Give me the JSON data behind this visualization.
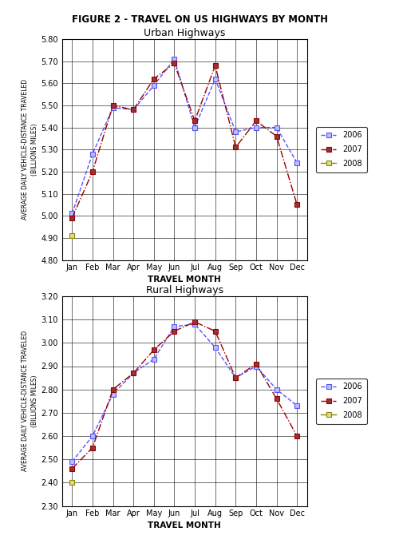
{
  "title": "FIGURE 2 - TRAVEL ON US HIGHWAYS BY MONTH",
  "months": [
    "Jan",
    "Feb",
    "Mar",
    "Apr",
    "May",
    "Jun",
    "Jul",
    "Aug",
    "Sep",
    "Oct",
    "Nov",
    "Dec"
  ],
  "urban": {
    "title": "Urban Highways",
    "ylabel": "AVERAGE DAILY VEHICLE-DISTANCE TRAVELED\n(BILLIONS MILES)",
    "xlabel": "TRAVEL MONTH",
    "ylim": [
      4.8,
      5.8
    ],
    "yticks": [
      4.8,
      4.9,
      5.0,
      5.1,
      5.2,
      5.3,
      5.4,
      5.5,
      5.6,
      5.7,
      5.8
    ],
    "data_2006": [
      5.01,
      5.28,
      5.49,
      5.48,
      5.59,
      5.71,
      5.4,
      5.62,
      5.38,
      5.4,
      5.4,
      5.24
    ],
    "data_2007": [
      4.99,
      5.2,
      5.5,
      5.48,
      5.62,
      5.69,
      5.43,
      5.68,
      5.31,
      5.43,
      5.36,
      5.05
    ],
    "data_2008": [
      4.91,
      null,
      null,
      null,
      null,
      null,
      null,
      null,
      null,
      null,
      null,
      null
    ]
  },
  "rural": {
    "title": "Rural Highways",
    "ylabel": "AVERAGE DAILY VEHICLE-DISTANCE TRAVELED\n(BILLIONS MILES)",
    "xlabel": "TRAVEL MONTH",
    "ylim": [
      2.3,
      3.2
    ],
    "yticks": [
      2.3,
      2.4,
      2.5,
      2.6,
      2.7,
      2.8,
      2.9,
      3.0,
      3.1,
      3.2
    ],
    "data_2006": [
      2.49,
      2.6,
      2.78,
      2.87,
      2.93,
      3.07,
      3.08,
      2.98,
      2.85,
      2.9,
      2.8,
      2.73
    ],
    "data_2007": [
      2.46,
      2.55,
      2.8,
      2.87,
      2.97,
      3.05,
      3.09,
      3.05,
      2.85,
      2.91,
      2.76,
      2.6
    ],
    "data_2008": [
      2.4,
      null,
      null,
      null,
      null,
      null,
      null,
      null,
      null,
      null,
      null,
      null
    ]
  },
  "color_2006": "#5555FF",
  "color_2007": "#990000",
  "color_2008": "#AAAA00",
  "legend_labels": [
    "2006",
    "2007",
    "2008"
  ]
}
